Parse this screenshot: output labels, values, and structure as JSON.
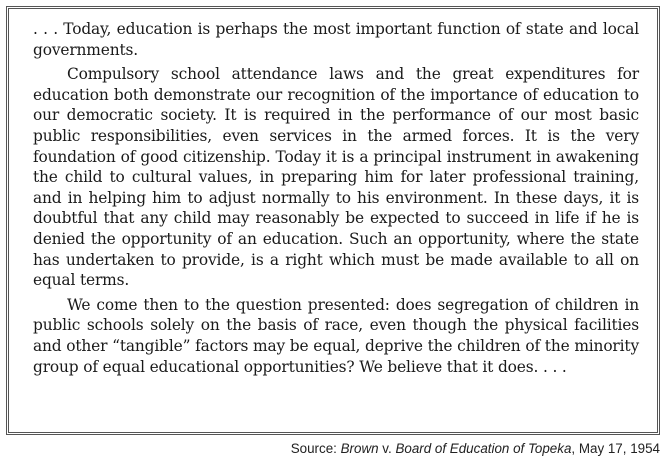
{
  "excerpt": {
    "paragraphs": [
      ". . . Today, education is perhaps the most important function of state and local governments.",
      "Compulsory school attendance laws and the great expenditures for education both demonstrate our recognition of the importance of education to our democratic society. It is required in the performance of our most basic public responsibilities, even services in the armed forces. It is the very foundation of good citizenship. Today it is a principal instrument in awakening the child to cultural values, in preparing him for later professional training, and in helping him to adjust normally to his environment. In these days, it is doubtful that any child may reasonably be expected to succeed in life if he is denied the opportunity of an education. Such an opportunity, where the state has undertaken to provide, is a right which must be made available to all on equal terms.",
      "We come then to the question presented: does segregation of children in public schools solely on the basis of race, even though the physical facilities and other “tangible” factors may be equal, deprive the children of the minority group of equal educational opportunities? We believe that it does. . . ."
    ]
  },
  "source": {
    "prefix": "Source: ",
    "case_part1": "Brown",
    "versus": " v. ",
    "case_part2": "Board of Education of Topeka",
    "date": ", May 17, 1954"
  }
}
